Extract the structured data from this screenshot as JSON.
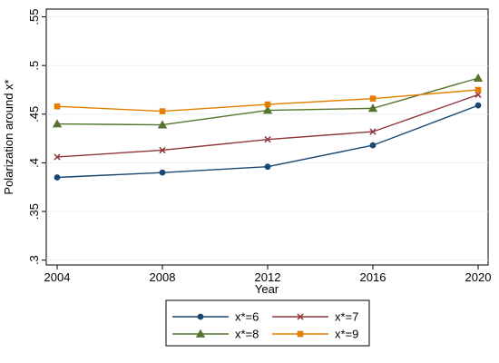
{
  "chart_data": {
    "type": "line",
    "title": "",
    "xlabel": "Year",
    "ylabel": "Polarization around x*",
    "x": [
      2004,
      2008,
      2012,
      2016,
      2020
    ],
    "xticks": [
      "2004",
      "2008",
      "2012",
      "2016",
      "2020"
    ],
    "yticks": [
      {
        "value": 0.3,
        "label": ".3"
      },
      {
        "value": 0.35,
        "label": ".35"
      },
      {
        "value": 0.4,
        "label": ".4"
      },
      {
        "value": 0.45,
        "label": ".45"
      },
      {
        "value": 0.5,
        "label": ".5"
      },
      {
        "value": 0.55,
        "label": ".55"
      }
    ],
    "xlim": [
      2004,
      2020
    ],
    "ylim": [
      0.295,
      0.558
    ],
    "grid": "horizontal",
    "legend": {
      "position": "bottom",
      "columns": 2
    },
    "series": [
      {
        "name": "x*=6",
        "color": "#1a476f",
        "marker": "circle",
        "values": [
          0.385,
          0.39,
          0.396,
          0.418,
          0.459
        ]
      },
      {
        "name": "x*=7",
        "color": "#90353b",
        "marker": "x",
        "values": [
          0.406,
          0.413,
          0.424,
          0.432,
          0.47
        ]
      },
      {
        "name": "x*=8",
        "color": "#55752f",
        "marker": "triangle",
        "values": [
          0.44,
          0.439,
          0.454,
          0.456,
          0.487
        ]
      },
      {
        "name": "x*=9",
        "color": "#e37e00",
        "marker": "square",
        "values": [
          0.458,
          0.453,
          0.46,
          0.466,
          0.475
        ]
      }
    ]
  }
}
